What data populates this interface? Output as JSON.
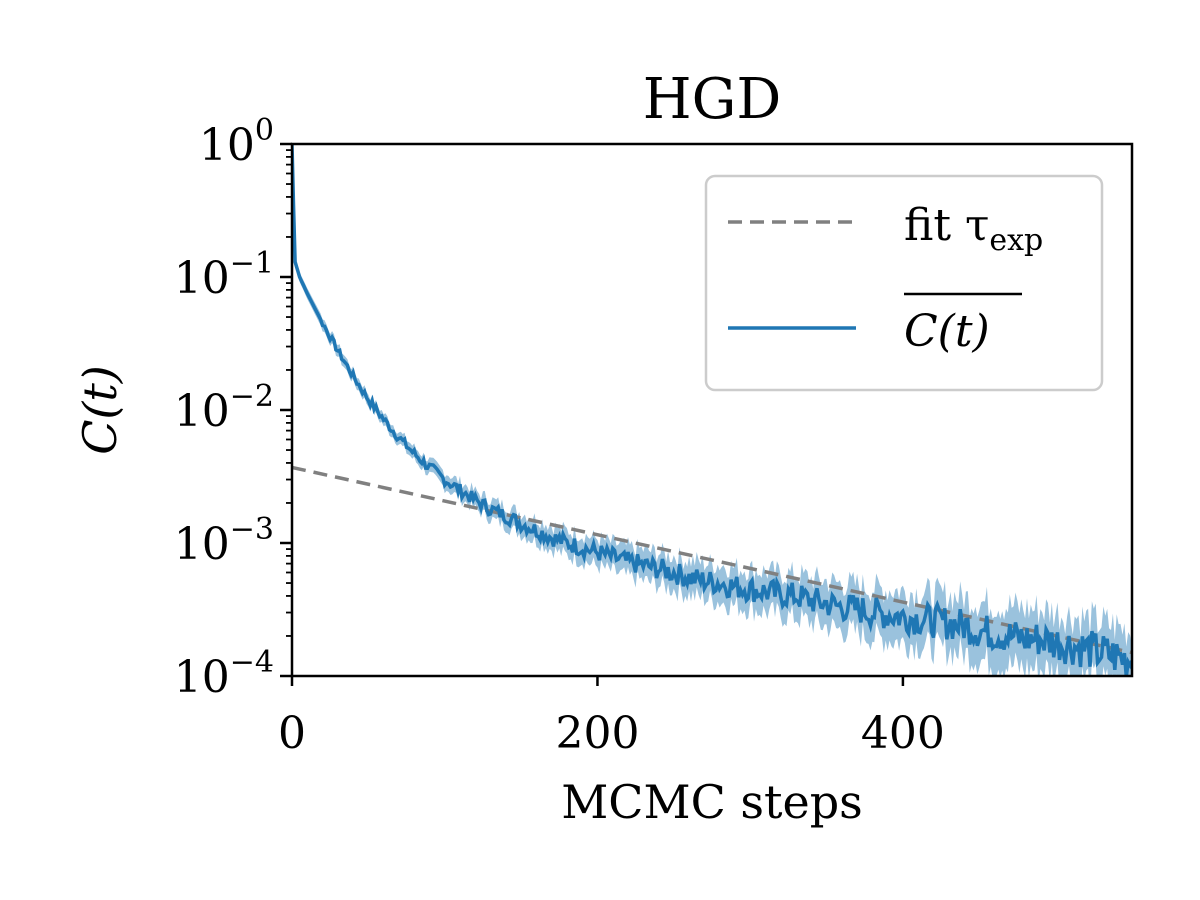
{
  "chart_data": {
    "type": "line",
    "title": "HGD",
    "xlabel": "MCMC steps",
    "ylabel": "C(t)",
    "xlim": [
      0,
      550
    ],
    "ylim": [
      0.0001,
      1
    ],
    "yscale": "log",
    "grid": false,
    "legend_position": "top-right",
    "x_ticks": [
      {
        "value": 0,
        "label": "0"
      },
      {
        "value": 200,
        "label": "200"
      },
      {
        "value": 400,
        "label": "400"
      }
    ],
    "y_ticks": [
      {
        "value": 1,
        "base": "10",
        "exp": "0"
      },
      {
        "value": 0.1,
        "base": "10",
        "exp": "−1"
      },
      {
        "value": 0.01,
        "base": "10",
        "exp": "−2"
      },
      {
        "value": 0.001,
        "base": "10",
        "exp": "−3"
      },
      {
        "value": 0.0001,
        "base": "10",
        "exp": "−4"
      }
    ],
    "series": [
      {
        "name": "fit τexp",
        "legend_main": "fit τ",
        "legend_sub": "exp",
        "style": "dashed",
        "color": "#808080",
        "x": [
          0,
          550
        ],
        "y": [
          0.0037,
          0.00015
        ]
      },
      {
        "name": "C(t) mean",
        "legend_main": "C(t)",
        "overline": true,
        "style": "solid",
        "color": "#1f77b4",
        "band_color": "#1f77b4",
        "x": [
          0,
          1,
          2,
          5,
          10,
          20,
          30,
          40,
          50,
          60,
          70,
          80,
          90,
          100,
          110,
          120,
          130,
          140,
          150,
          160,
          170,
          180,
          190,
          200,
          210,
          220,
          230,
          240,
          250,
          260,
          270,
          280,
          290,
          300,
          310,
          320,
          330,
          340,
          350,
          360,
          370,
          380,
          390,
          400,
          410,
          420,
          430,
          440,
          450,
          460,
          470,
          480,
          490,
          500,
          510,
          520,
          530,
          540,
          550
        ],
        "y": [
          1.0,
          0.35,
          0.13,
          0.1,
          0.075,
          0.045,
          0.028,
          0.018,
          0.012,
          0.0085,
          0.0062,
          0.0047,
          0.0037,
          0.003,
          0.0025,
          0.0021,
          0.0018,
          0.0016,
          0.0014,
          0.00125,
          0.0011,
          0.001,
          0.00092,
          0.00085,
          0.00078,
          0.00072,
          0.00068,
          0.00064,
          0.0006,
          0.00055,
          0.00052,
          0.0005,
          0.00047,
          0.00045,
          0.00043,
          0.00041,
          0.0004,
          0.00037,
          0.00035,
          0.00033,
          0.00032,
          0.0003,
          0.00029,
          0.00028,
          0.00027,
          0.00026,
          0.00025,
          0.00024,
          0.00022,
          0.00021,
          0.0002,
          0.00019,
          0.00019,
          0.00018,
          0.00017,
          0.00016,
          0.00015,
          0.00014,
          0.00013
        ],
        "band_rel": [
          0,
          0,
          0.05,
          0.08,
          0.09,
          0.1,
          0.1,
          0.1,
          0.1,
          0.1,
          0.1,
          0.11,
          0.12,
          0.13,
          0.14,
          0.15,
          0.16,
          0.17,
          0.18,
          0.19,
          0.2,
          0.21,
          0.22,
          0.23,
          0.24,
          0.25,
          0.26,
          0.27,
          0.28,
          0.29,
          0.3,
          0.31,
          0.32,
          0.33,
          0.34,
          0.35,
          0.36,
          0.37,
          0.38,
          0.39,
          0.4,
          0.41,
          0.42,
          0.43,
          0.44,
          0.45,
          0.46,
          0.47,
          0.48,
          0.49,
          0.5,
          0.5,
          0.5,
          0.5,
          0.5,
          0.5,
          0.5,
          0.5,
          0.5
        ]
      }
    ]
  }
}
